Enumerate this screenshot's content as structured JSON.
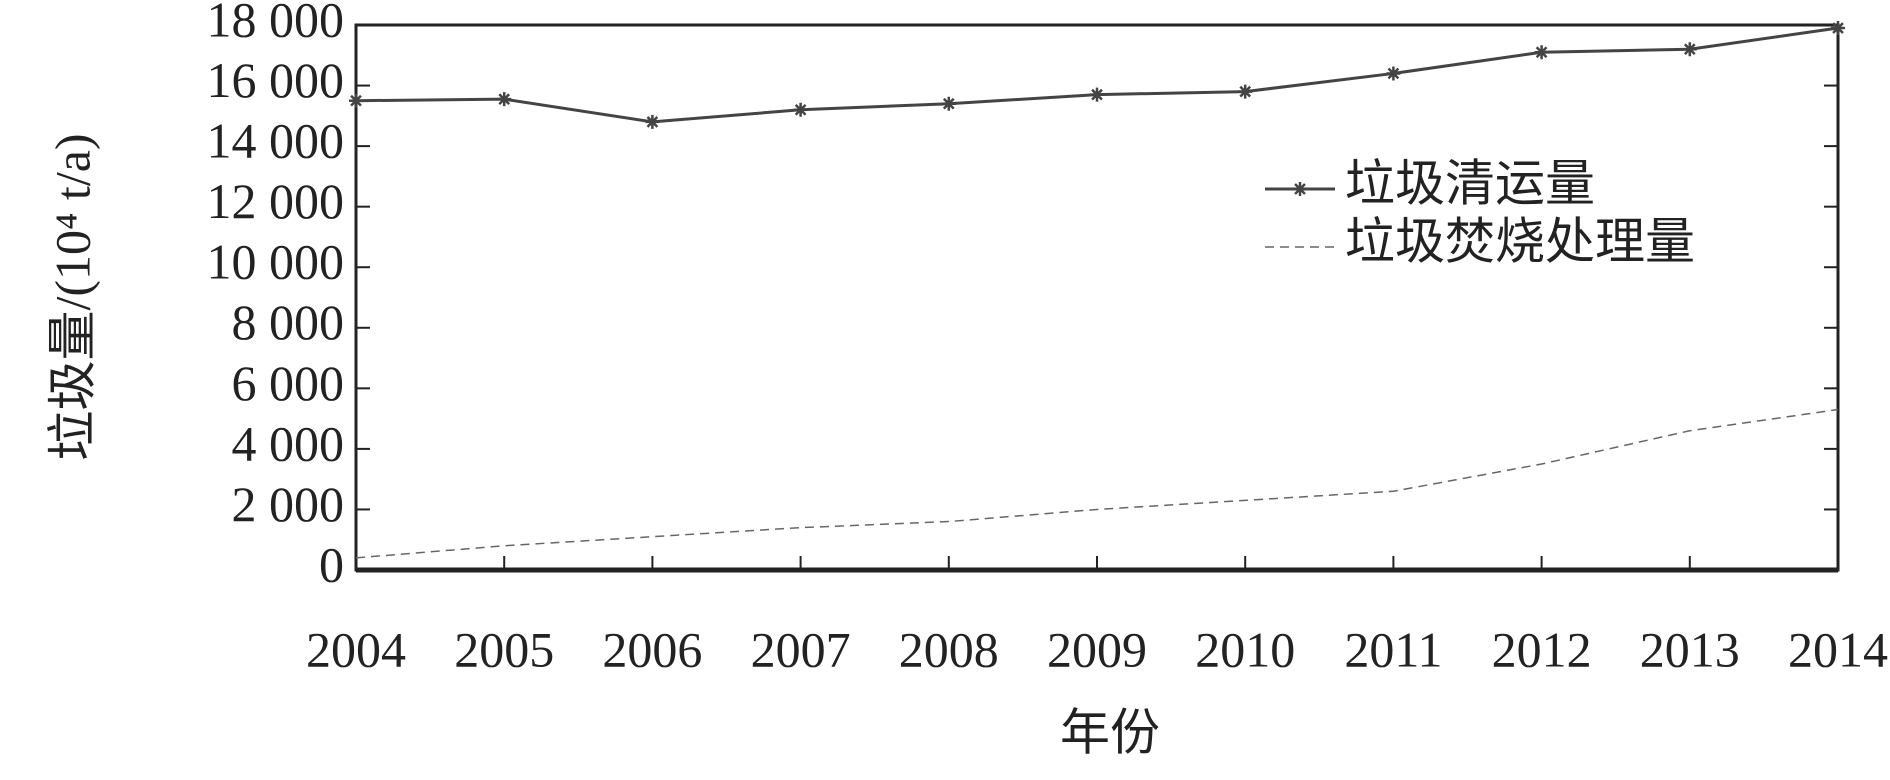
{
  "chart_data": {
    "type": "line",
    "x_label": "年份",
    "y_label": "垃圾量/(10⁴ t/a)",
    "categories": [
      "2004",
      "2005",
      "2006",
      "2007",
      "2008",
      "2009",
      "2010",
      "2011",
      "2012",
      "2013",
      "2014"
    ],
    "series": [
      {
        "name": "垃圾清运量",
        "color": "#444444",
        "line_style": "solid",
        "marker": "asterisk",
        "values": [
          15500,
          15550,
          14800,
          15200,
          15400,
          15700,
          15800,
          16400,
          17100,
          17200,
          17900
        ]
      },
      {
        "name": "垃圾焚烧处理量",
        "color": "#666666",
        "line_style": "dashed",
        "marker": "none",
        "values": [
          400,
          800,
          1100,
          1400,
          1600,
          2000,
          2300,
          2600,
          3500,
          4600,
          5300
        ]
      }
    ],
    "ylim": [
      0,
      18000
    ],
    "yticks": [
      0,
      {
        "value": 2000,
        "label": "2 000"
      },
      {
        "value": 4000,
        "label": "4 000"
      },
      {
        "value": 6000,
        "label": "6 000"
      },
      {
        "value": 8000,
        "label": "8 000"
      },
      {
        "value": 10000,
        "label": "10 000"
      },
      {
        "value": 12000,
        "label": "12 000"
      },
      {
        "value": 14000,
        "label": "14 000"
      },
      {
        "value": 16000,
        "label": "16 000"
      },
      {
        "value": 18000,
        "label": "18 000"
      }
    ],
    "grid": false,
    "legend": "upper-right"
  }
}
